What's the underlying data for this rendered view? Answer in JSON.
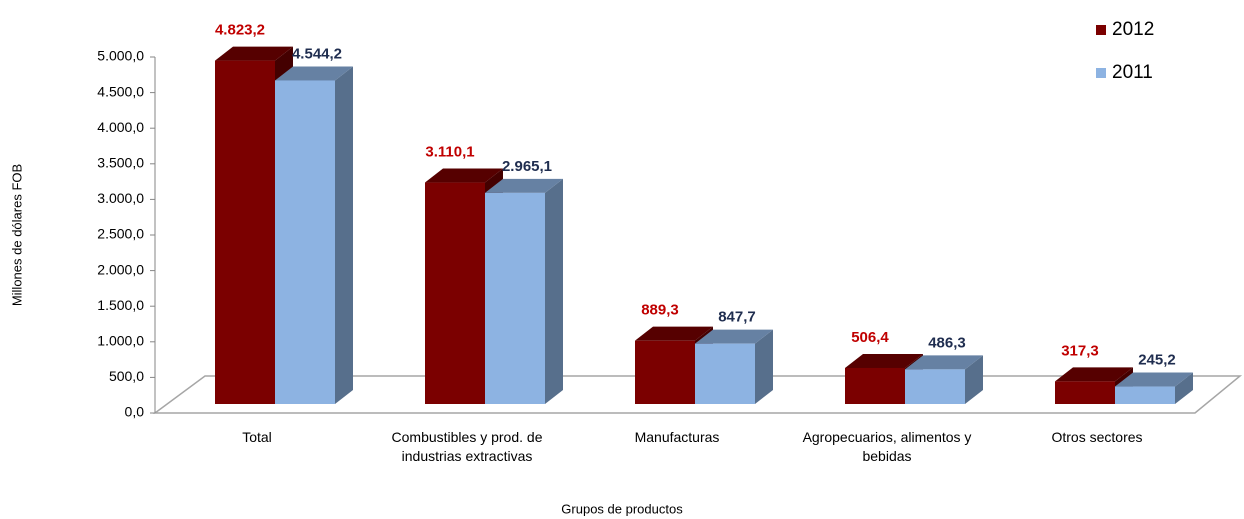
{
  "chart_data": {
    "type": "bar3d",
    "x_label": "Grupos de productos",
    "y_label": "Millones de dólares FOB",
    "categories": [
      "Total",
      "Combustibles y prod. de industrias extractivas",
      "Manufacturas",
      "Agropecuarios, alimentos y bebidas",
      "Otros sectores"
    ],
    "series": [
      {
        "name": "2012",
        "color": "#7b0000",
        "label_color": "#c00000",
        "values": [
          4823.2,
          3110.1,
          889.3,
          506.4,
          317.3
        ],
        "value_labels": [
          "4.823,2",
          "3.110,1",
          "889,3",
          "506,4",
          "317,3"
        ]
      },
      {
        "name": "2011",
        "color": "#8db3e2",
        "label_color": "#1f2d4f",
        "values": [
          4544.2,
          2965.1,
          847.7,
          486.3,
          245.2
        ],
        "value_labels": [
          "4.544,2",
          "2.965,1",
          "847,7",
          "486,3",
          "245,2"
        ]
      }
    ],
    "ylim": [
      0,
      5000
    ],
    "yticks": [
      {
        "value": 0,
        "label": "0,0"
      },
      {
        "value": 500,
        "label": "500,0"
      },
      {
        "value": 1000,
        "label": "1.000,0"
      },
      {
        "value": 1500,
        "label": "1.500,0"
      },
      {
        "value": 2000,
        "label": "2.000,0"
      },
      {
        "value": 2500,
        "label": "2.500,0"
      },
      {
        "value": 3000,
        "label": "3.000,0"
      },
      {
        "value": 3500,
        "label": "3.500,0"
      },
      {
        "value": 4000,
        "label": "4.000,0"
      },
      {
        "value": 4500,
        "label": "4.500,0"
      },
      {
        "value": 5000,
        "label": "5.000,0"
      }
    ],
    "legend": "top-right"
  }
}
